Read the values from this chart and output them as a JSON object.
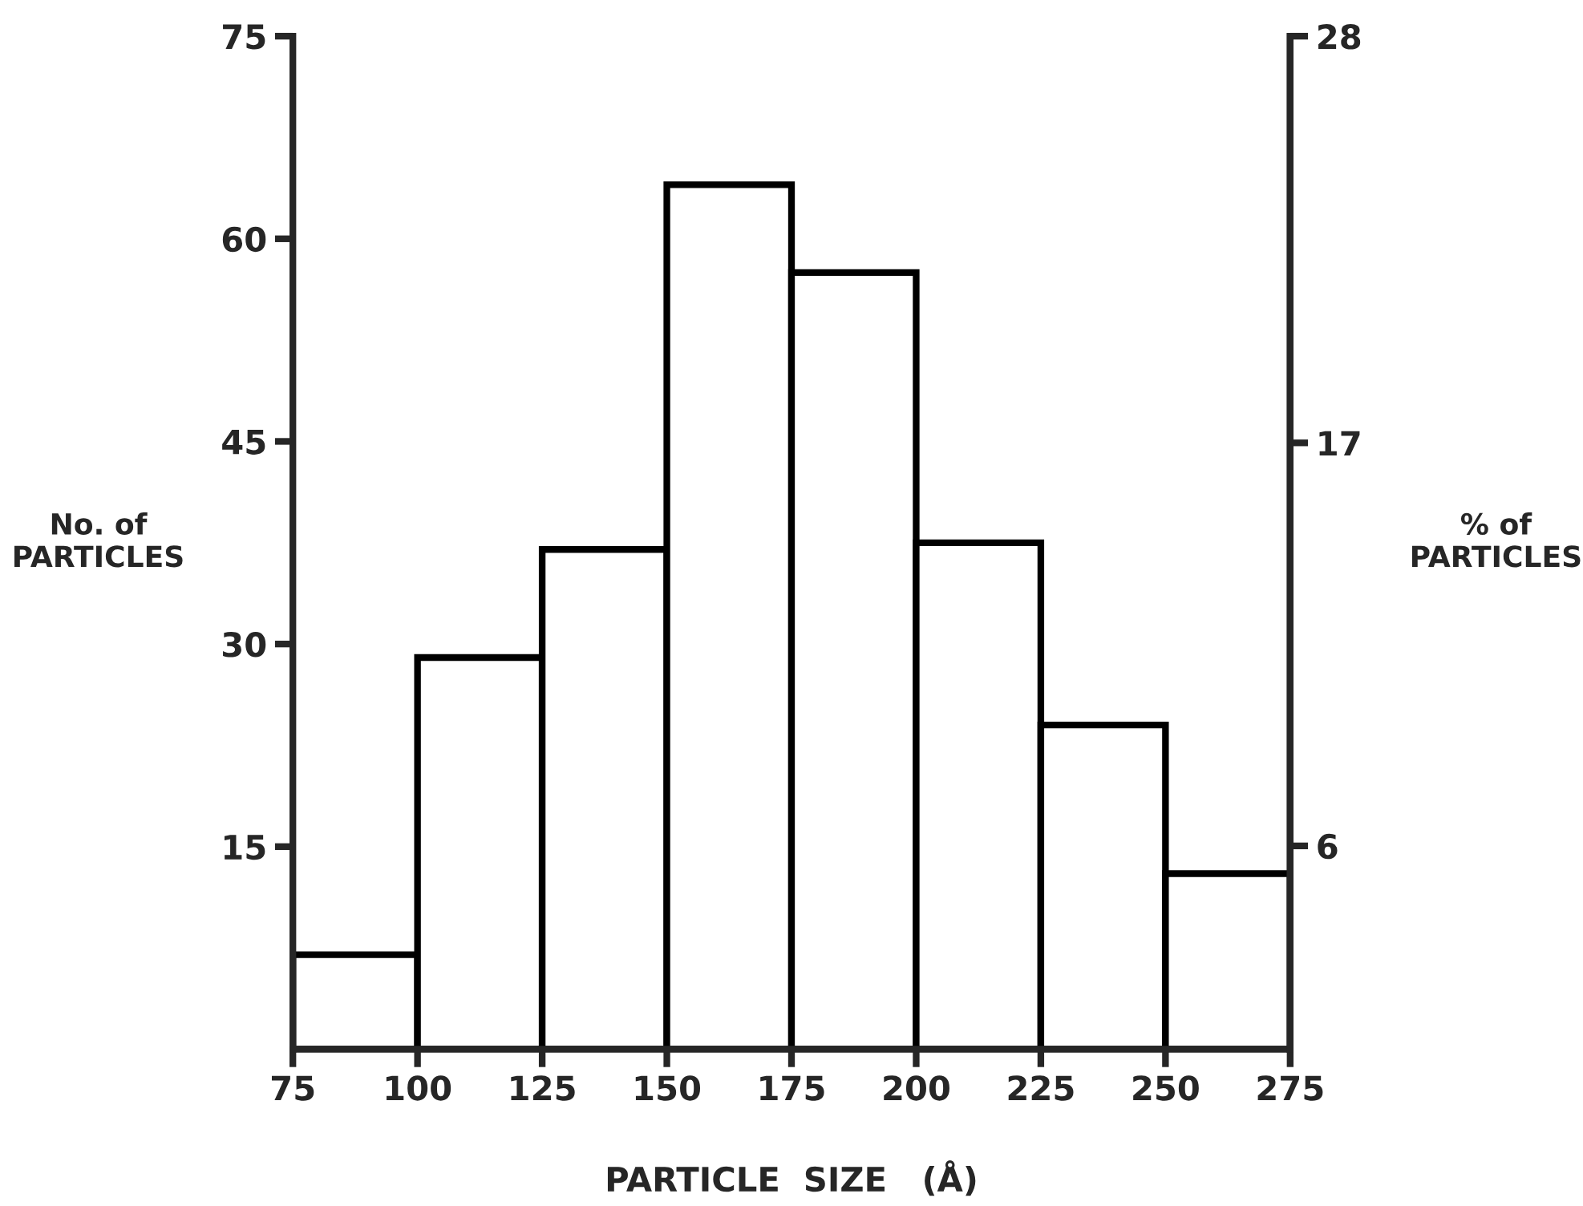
{
  "chart_data": {
    "type": "histogram",
    "xlabel": "PARTICLE  SIZE   (Å)",
    "ylabel": "No. of\nPARTICLES",
    "y2label": "% of\nPARTICLES",
    "bins": [
      75,
      100,
      125,
      150,
      175,
      200,
      225,
      250,
      275
    ],
    "values": [
      7,
      29,
      37,
      64,
      57.5,
      37.5,
      24,
      13
    ],
    "color": "#ffffff",
    "xlim": [
      75,
      275
    ],
    "xticks": [
      75,
      100,
      125,
      150,
      175,
      200,
      225,
      250,
      275
    ],
    "ylim": [
      0,
      75
    ],
    "yticks": [
      15,
      30,
      45,
      60,
      75
    ],
    "y2lim": [
      0,
      27.9
    ],
    "y2ticks": [
      {
        "value": 5.6,
        "label": "6"
      },
      {
        "value": 16.7,
        "label": "17"
      },
      {
        "value": 27.9,
        "label": "28"
      }
    ],
    "grid": false
  }
}
